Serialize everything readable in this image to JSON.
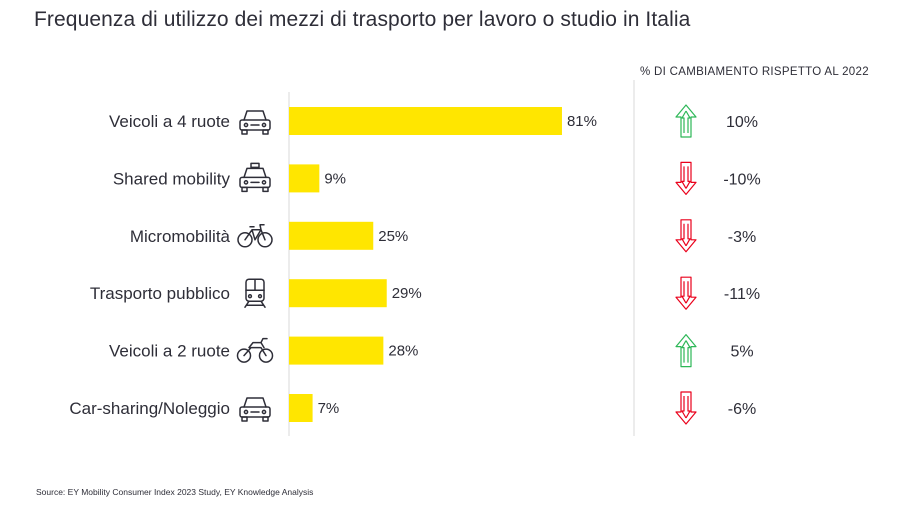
{
  "header": {
    "title": "Frequenza di utilizzo dei mezzi di trasporto per lavoro o studio in Italia",
    "change_header": "% DI CAMBIAMENTO RISPETTO AL 2022"
  },
  "footer": {
    "source": "Source: EY Mobility Consumer Index 2023 Study, EY Knowledge Analysis"
  },
  "colors": {
    "bar": "#ffe600",
    "text": "#2e2e38",
    "axis": "#d9d9d9",
    "up_arrow": "#2db757",
    "down_arrow": "#ea011b"
  },
  "chart_data": {
    "type": "bar",
    "orientation": "horizontal",
    "title": "Frequenza di utilizzo dei mezzi di trasporto per lavoro o studio in Italia",
    "categories": [
      "Veicoli a 4 ruote",
      "Shared mobility",
      "Micromobilità",
      "Trasporto pubblico",
      "Veicoli a 2 ruote",
      "Car-sharing/Noleggio"
    ],
    "icons": [
      "car-icon",
      "taxi-icon",
      "bicycle-icon",
      "train-icon",
      "motorcycle-icon",
      "car-icon"
    ],
    "values": [
      81,
      9,
      25,
      29,
      28,
      7
    ],
    "value_labels": [
      "81%",
      "9%",
      "25%",
      "29%",
      "28%",
      "7%"
    ],
    "xlim": [
      0,
      100
    ],
    "grid": false,
    "change_vs_2022": {
      "title": "% DI CAMBIAMENTO RISPETTO AL 2022",
      "values": [
        10,
        -10,
        -3,
        -11,
        5,
        -6
      ],
      "labels": [
        "10%",
        "-10%",
        "-3%",
        "-11%",
        "5%",
        "-6%"
      ]
    }
  }
}
